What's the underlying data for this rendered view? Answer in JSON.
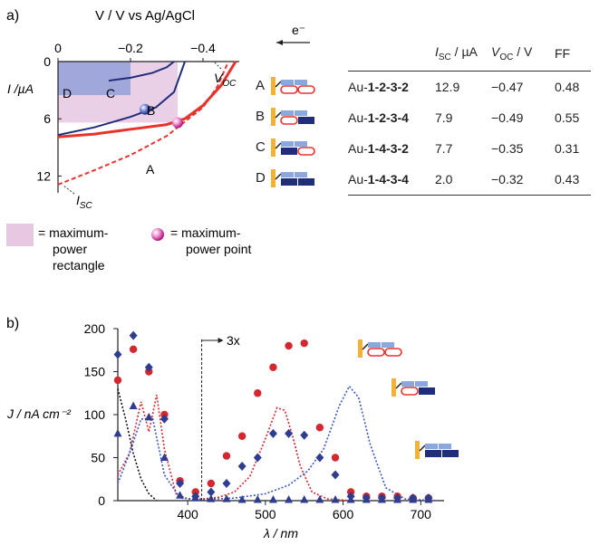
{
  "panel_a": {
    "label": "a)",
    "x_axis_title": "V / V vs Ag/AgCl",
    "x_ticks": [
      "0",
      "−0.2",
      "−0.4"
    ],
    "y_axis_title": "I /µA",
    "y_ticks": [
      "0",
      "6",
      "12"
    ],
    "curve_labels": {
      "A": "A",
      "B": "B",
      "C": "C",
      "D": "D"
    },
    "voc_label": "V",
    "voc_sub": "OC",
    "isc_label": "I",
    "isc_sub": "SC",
    "arrow_label": "e⁻",
    "legend": {
      "rect_text": [
        "= maximum-",
        "power",
        "rectangle"
      ],
      "point_text": [
        "= maximum-",
        "power point"
      ]
    },
    "colors": {
      "red": "#e8332b",
      "navy": "#1f2d7a",
      "rect_pink": "#e6c8e3",
      "rect_blue": "#7f96d6",
      "gold": "#f2b233",
      "light_blue": "#8aa8de"
    }
  },
  "table": {
    "headers": {
      "compound": "",
      "isc": "I",
      "isc_sub": "SC",
      "isc_unit": " / µA",
      "voc": "V",
      "voc_sub": "OC",
      "voc_unit": " / V",
      "ff": "FF"
    },
    "rows": [
      {
        "letter": "A",
        "prefix": "Au-",
        "compound": "1-2-3-2",
        "isc": "12.9",
        "voc": "−0.47",
        "ff": "0.48"
      },
      {
        "letter": "B",
        "prefix": "Au-",
        "compound": "1-2-3-4",
        "isc": "7.9",
        "voc": "−0.49",
        "ff": "0.55"
      },
      {
        "letter": "C",
        "prefix": "Au-",
        "compound": "1-4-3-2",
        "isc": "7.7",
        "voc": "−0.35",
        "ff": "0.31"
      },
      {
        "letter": "D",
        "prefix": "Au-",
        "compound": "1-4-3-4",
        "isc": "2.0",
        "voc": "−0.32",
        "ff": "0.43"
      }
    ]
  },
  "panel_b": {
    "label": "b)",
    "marker_3x": "3x"
  },
  "chart_data": [
    {
      "type": "line",
      "xlabel": "V / V vs Ag/AgCl",
      "ylabel": "I /µA",
      "xlim": [
        0,
        -0.5
      ],
      "ylim": [
        0,
        13
      ],
      "x_reversed": true,
      "y_inverted": true,
      "series": [
        {
          "name": "A",
          "style": "dashed",
          "color": "#e8332b",
          "x": [
            0,
            -0.1,
            -0.2,
            -0.3,
            -0.4,
            -0.44,
            -0.47
          ],
          "y": [
            12.9,
            11.4,
            9.8,
            7.8,
            4.8,
            2.6,
            0
          ]
        },
        {
          "name": "B",
          "style": "solid",
          "color": "#e8332b",
          "x": [
            0,
            -0.1,
            -0.2,
            -0.3,
            -0.35,
            -0.4,
            -0.45,
            -0.49
          ],
          "y": [
            7.9,
            7.6,
            7.1,
            6.6,
            6.0,
            4.6,
            2.5,
            0
          ]
        },
        {
          "name": "C",
          "style": "solid",
          "color": "#1f2d7a",
          "x": [
            0,
            -0.1,
            -0.2,
            -0.27,
            -0.32,
            -0.35
          ],
          "y": [
            7.7,
            6.9,
            5.8,
            4.8,
            3.2,
            0
          ]
        },
        {
          "name": "D",
          "style": "solid",
          "color": "#1f2d7a",
          "x": [
            -0.14,
            -0.2,
            -0.26,
            -0.3,
            -0.32
          ],
          "y": [
            2.0,
            1.7,
            1.2,
            0.6,
            0
          ]
        }
      ],
      "max_power_points": [
        {
          "curve": "B",
          "x": -0.33,
          "y": 6.4
        },
        {
          "curve": "C",
          "x": -0.24,
          "y": 5.0
        }
      ],
      "max_power_rectangles": [
        {
          "curve": "A",
          "v": -0.33,
          "i": 6.4
        },
        {
          "curve": "D",
          "v": -0.2,
          "i": 1.8
        }
      ]
    },
    {
      "type": "scatter",
      "xlabel": "λ / nm",
      "ylabel": "J / nA cm⁻²",
      "xlim": [
        310,
        730
      ],
      "ylim": [
        0,
        200
      ],
      "x_ticks": [
        400,
        500,
        600,
        700
      ],
      "y_ticks": [
        0,
        50,
        100,
        150,
        200
      ],
      "series": [
        {
          "name": "red circles",
          "marker": "circle",
          "color": "#d3282f",
          "x": [
            310,
            330,
            350,
            370,
            390,
            410,
            430,
            450,
            470,
            490,
            510,
            530,
            550,
            570,
            590,
            610,
            630,
            650,
            670,
            690,
            710
          ],
          "y": [
            140,
            176,
            150,
            100,
            23,
            10,
            20,
            52,
            75,
            125,
            155,
            180,
            183,
            85,
            50,
            10,
            5,
            5,
            5,
            3,
            3
          ]
        },
        {
          "name": "blue diamonds",
          "marker": "diamond",
          "color": "#2e3d8f",
          "x": [
            310,
            330,
            350,
            370,
            390,
            410,
            430,
            450,
            470,
            490,
            510,
            530,
            550,
            570,
            590,
            610,
            630,
            650,
            670,
            690,
            710
          ],
          "y": [
            170,
            192,
            155,
            95,
            20,
            5,
            10,
            20,
            40,
            50,
            78,
            78,
            76,
            50,
            30,
            5,
            3,
            3,
            3,
            3,
            3
          ]
        },
        {
          "name": "blue triangles",
          "marker": "triangle",
          "color": "#2e3d8f",
          "x": [
            310,
            330,
            350,
            370,
            390,
            410,
            430,
            450,
            470,
            490,
            510,
            530,
            550,
            570,
            590,
            610,
            630,
            650,
            670,
            690,
            710
          ],
          "y": [
            78,
            110,
            97,
            50,
            6,
            3,
            2,
            2,
            1,
            1,
            1,
            1,
            1,
            1,
            1,
            1,
            1,
            1,
            1,
            1,
            1
          ]
        },
        {
          "name": "red dotted",
          "style": "dotted",
          "color": "#d3282f",
          "x": [
            310,
            325,
            340,
            350,
            360,
            370,
            385,
            400,
            420,
            440,
            460,
            480,
            500,
            515,
            525,
            535,
            545,
            560,
            580,
            610
          ],
          "y": [
            30,
            55,
            115,
            80,
            123,
            60,
            8,
            2,
            2,
            4,
            10,
            28,
            72,
            108,
            105,
            75,
            40,
            10,
            2,
            0
          ]
        },
        {
          "name": "blue dotted",
          "style": "dotted",
          "color": "#3a57c4",
          "x": [
            310,
            325,
            340,
            355,
            370,
            390,
            420,
            460,
            500,
            530,
            555,
            575,
            595,
            608,
            620,
            635,
            655,
            680,
            720
          ],
          "y": [
            20,
            55,
            95,
            95,
            30,
            3,
            1,
            3,
            8,
            18,
            35,
            60,
            110,
            133,
            120,
            65,
            15,
            2,
            0
          ]
        },
        {
          "name": "black dotted",
          "style": "dotted",
          "color": "#111111",
          "x": [
            310,
            320,
            330,
            340,
            350,
            360
          ],
          "y": [
            130,
            95,
            55,
            25,
            8,
            0
          ]
        }
      ],
      "annotations": [
        {
          "text": "3x",
          "at_x": 418
        }
      ]
    }
  ]
}
